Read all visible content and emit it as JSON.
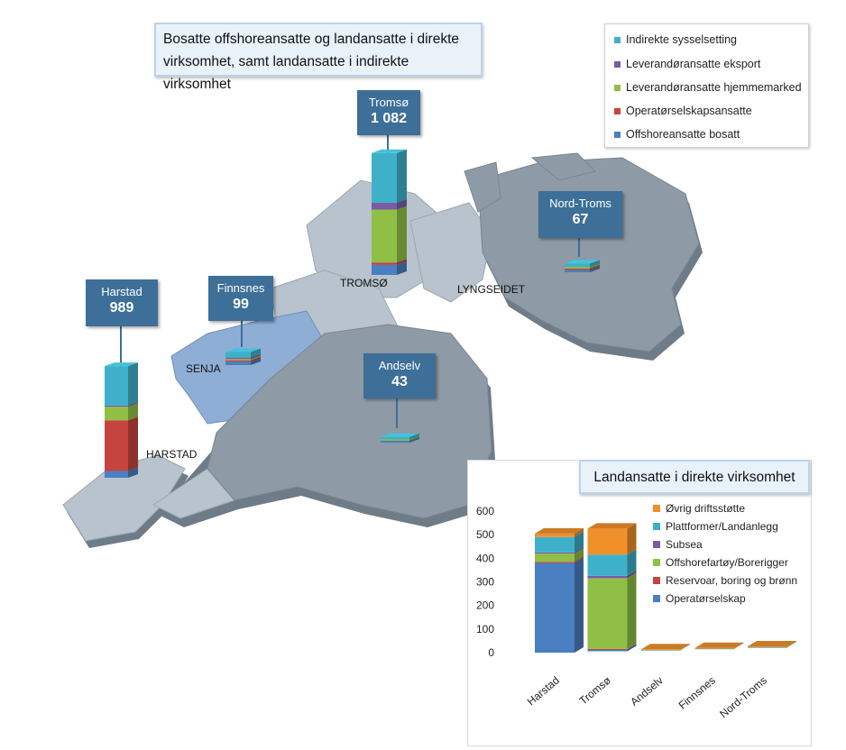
{
  "map": {
    "title": "Bosatte offshoreansatte og landansatte i direkte virksomhet, samt landansatte i indirekte virksomhet",
    "legend": [
      {
        "label": "Indirekte sysselsetting",
        "color": "#3fb0c9"
      },
      {
        "label": "Leverandøransatte eksport",
        "color": "#7b5aa6"
      },
      {
        "label": "Leverandøransatte hjemmemarked",
        "color": "#8fbf45"
      },
      {
        "label": "Operatørselskapsansatte",
        "color": "#c5443f"
      },
      {
        "label": "Offshoreansatte bosatt",
        "color": "#4a7fc1"
      }
    ],
    "callouts": [
      {
        "name": "Harstad",
        "value": "989"
      },
      {
        "name": "Finnsnes",
        "value": "99"
      },
      {
        "name": "Tromsø",
        "value": "1 082"
      },
      {
        "name": "Nord-Troms",
        "value": "67"
      },
      {
        "name": "Andselv",
        "value": "43"
      }
    ],
    "place_labels": [
      "SENJA",
      "HARSTAD",
      "TROMSØ",
      "LYNGSEIDET"
    ],
    "stacks": {
      "Harstad": {
        "Offshoreansatte bosatt": 60,
        "Operatørselskapsansatte": 450,
        "Leverandøransatte hjemmemarked": 120,
        "Leverandøransatte eksport": 10,
        "Indirekte sysselsetting": 349
      },
      "Tromsø": {
        "Offshoreansatte bosatt": 90,
        "Operatørselskapsansatte": 20,
        "Leverandøransatte hjemmemarked": 470,
        "Leverandøransatte eksport": 60,
        "Indirekte sysselsetting": 442
      },
      "Finnsnes": {
        "Offshoreansatte bosatt": 30,
        "Operatørselskapsansatte": 5,
        "Leverandøransatte hjemmemarked": 10,
        "Leverandøransatte eksport": 4,
        "Indirekte sysselsetting": 50
      },
      "Nord-Troms": {
        "Offshoreansatte bosatt": 20,
        "Operatørselskapsansatte": 2,
        "Leverandøransatte hjemmemarked": 15,
        "Leverandøransatte eksport": 0,
        "Indirekte sysselsetting": 30
      },
      "Andselv": {
        "Offshoreansatte bosatt": 18,
        "Operatørselskapsansatte": 0,
        "Leverandøransatte hjemmemarked": 5,
        "Leverandøransatte eksport": 0,
        "Indirekte sysselsetting": 20
      }
    }
  },
  "chart_data": {
    "type": "bar",
    "title": "Landansatte i direkte virksomhet",
    "categories": [
      "Harstad",
      "Tromsø",
      "Andselv",
      "Finnsnes",
      "Nord-Troms"
    ],
    "ylim": [
      0,
      600
    ],
    "yticks": [
      "0",
      "100",
      "200",
      "300",
      "400",
      "500",
      "600"
    ],
    "legend_position": "right",
    "series": [
      {
        "name": "Operatørselskap",
        "color": "#4a7fc1",
        "values": [
          380,
          8,
          0,
          0,
          0
        ]
      },
      {
        "name": "Reservoar, boring og brønn",
        "color": "#c5443f",
        "values": [
          5,
          2,
          0,
          0,
          0
        ]
      },
      {
        "name": "Offshorefartøy/Borerigger",
        "color": "#8fbf45",
        "values": [
          35,
          300,
          0,
          0,
          0
        ]
      },
      {
        "name": "Subsea",
        "color": "#7b5aa6",
        "values": [
          5,
          10,
          0,
          0,
          0
        ]
      },
      {
        "name": "Plattformer/Landanlegg",
        "color": "#3fb0c9",
        "values": [
          65,
          90,
          1,
          1,
          1
        ]
      },
      {
        "name": "Øvrig driftsstøtte",
        "color": "#f0902b",
        "values": [
          15,
          110,
          2,
          2,
          3
        ]
      }
    ]
  }
}
